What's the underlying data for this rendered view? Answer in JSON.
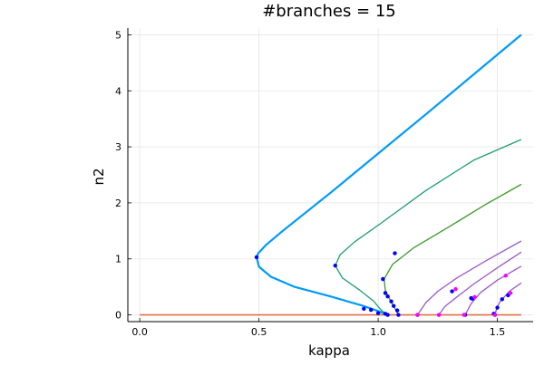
{
  "chart_data": {
    "type": "line",
    "title": "#branches = 15",
    "xlabel": "kappa",
    "ylabel": "n2",
    "xlim": [
      -0.05,
      1.65
    ],
    "ylim": [
      -0.12,
      5.12
    ],
    "xticks": [
      0.0,
      0.5,
      1.0,
      1.5
    ],
    "xtick_labels": [
      "0.0",
      "0.5",
      "1.0",
      "1.5"
    ],
    "yticks": [
      0,
      1,
      2,
      3,
      4,
      5
    ],
    "ytick_labels": [
      "0",
      "1",
      "2",
      "3",
      "4",
      "5"
    ],
    "grid": true,
    "legend": "none",
    "colors": {
      "main_branch": "#009af9",
      "teal_branch": "#1f9e6e",
      "green_branch": "#3a9a2a",
      "purple_branch": "#9b59c8",
      "trivial_branch": "#e26f46",
      "bifurcation_points": "#0000ff",
      "special_points": "#ff00ff"
    },
    "series": [
      {
        "color": "#009af9",
        "width": 2.2,
        "points": [
          [
            1.6,
            5.0
          ],
          [
            1.2,
            3.58
          ],
          [
            0.8,
            2.18
          ],
          [
            0.6,
            1.5
          ],
          [
            0.53,
            1.25
          ],
          [
            0.497,
            1.1
          ],
          [
            0.49,
            1.03
          ],
          [
            0.5,
            0.86
          ],
          [
            0.55,
            0.68
          ],
          [
            0.65,
            0.5
          ],
          [
            0.8,
            0.33
          ],
          [
            0.93,
            0.17
          ],
          [
            1.0,
            0.07
          ],
          [
            1.04,
            0.0
          ]
        ]
      },
      {
        "color": "#1f9e6e",
        "width": 1.3,
        "points": [
          [
            1.6,
            3.13
          ],
          [
            1.4,
            2.76
          ],
          [
            1.2,
            2.22
          ],
          [
            1.0,
            1.6
          ],
          [
            0.9,
            1.3
          ],
          [
            0.84,
            1.07
          ],
          [
            0.82,
            0.88
          ],
          [
            0.85,
            0.66
          ],
          [
            0.92,
            0.45
          ],
          [
            0.98,
            0.25
          ],
          [
            1.01,
            0.1
          ],
          [
            1.035,
            0.0
          ]
        ]
      },
      {
        "color": "#3a9a2a",
        "width": 1.3,
        "points": [
          [
            1.6,
            2.33
          ],
          [
            1.45,
            1.97
          ],
          [
            1.3,
            1.58
          ],
          [
            1.15,
            1.2
          ],
          [
            1.06,
            0.9
          ],
          [
            1.025,
            0.64
          ],
          [
            1.03,
            0.44
          ],
          [
            1.05,
            0.27
          ],
          [
            1.07,
            0.12
          ],
          [
            1.085,
            0.0
          ]
        ]
      },
      {
        "color": "#9b59c8",
        "width": 1.3,
        "points": [
          [
            1.6,
            1.32
          ],
          [
            1.45,
            0.96
          ],
          [
            1.33,
            0.66
          ],
          [
            1.25,
            0.42
          ],
          [
            1.2,
            0.22
          ],
          [
            1.165,
            0.0
          ]
        ]
      },
      {
        "color": "#9b59c8",
        "width": 1.3,
        "points": [
          [
            1.6,
            1.12
          ],
          [
            1.5,
            0.84
          ],
          [
            1.4,
            0.55
          ],
          [
            1.33,
            0.32
          ],
          [
            1.28,
            0.15
          ],
          [
            1.255,
            0.0
          ]
        ]
      },
      {
        "color": "#9b59c8",
        "width": 1.3,
        "points": [
          [
            1.6,
            0.87
          ],
          [
            1.5,
            0.62
          ],
          [
            1.43,
            0.4
          ],
          [
            1.39,
            0.2
          ],
          [
            1.365,
            0.0
          ]
        ]
      },
      {
        "color": "#9b59c8",
        "width": 1.3,
        "points": [
          [
            1.6,
            0.57
          ],
          [
            1.55,
            0.42
          ],
          [
            1.51,
            0.23
          ],
          [
            1.495,
            0.08
          ],
          [
            1.49,
            0.0
          ]
        ]
      },
      {
        "color": "#e26f46",
        "width": 1.6,
        "points": [
          [
            0.0,
            0.0
          ],
          [
            1.6,
            0.0
          ]
        ]
      }
    ],
    "bifurcation_points": [
      [
        0.49,
        1.03
      ],
      [
        0.82,
        0.88
      ],
      [
        1.07,
        1.1
      ],
      [
        1.02,
        0.64
      ],
      [
        1.03,
        0.39
      ],
      [
        1.04,
        0.33
      ],
      [
        1.055,
        0.24
      ],
      [
        1.065,
        0.16
      ],
      [
        1.08,
        0.08
      ],
      [
        0.94,
        0.11
      ],
      [
        0.97,
        0.09
      ],
      [
        1.0,
        0.03
      ],
      [
        1.03,
        0.02
      ],
      [
        1.04,
        0.0
      ],
      [
        1.085,
        0.0
      ],
      [
        1.165,
        0.0
      ],
      [
        1.255,
        0.0
      ],
      [
        1.365,
        0.0
      ],
      [
        1.49,
        0.0
      ],
      [
        1.485,
        0.02
      ],
      [
        1.31,
        0.42
      ],
      [
        1.395,
        0.29
      ],
      [
        1.39,
        0.3
      ],
      [
        1.52,
        0.28
      ],
      [
        1.5,
        0.13
      ],
      [
        1.545,
        0.35
      ]
    ],
    "special_points": [
      [
        1.165,
        0.0
      ],
      [
        1.255,
        0.0
      ],
      [
        1.36,
        0.0
      ],
      [
        1.49,
        0.0
      ],
      [
        1.535,
        0.7
      ],
      [
        1.325,
        0.46
      ],
      [
        1.405,
        0.32
      ],
      [
        1.555,
        0.39
      ]
    ]
  }
}
